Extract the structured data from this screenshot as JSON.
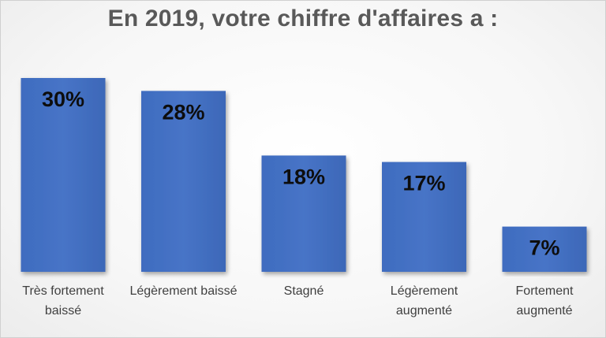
{
  "chart_data": {
    "type": "bar",
    "title": "En 2019, votre chiffre d'affaires a :",
    "categories": [
      [
        "Très fortement",
        "baissé"
      ],
      [
        "Légèrement baissé"
      ],
      [
        "Stagné"
      ],
      [
        "Légèrement",
        "augmenté"
      ],
      [
        "Fortement",
        "augmenté"
      ]
    ],
    "values": [
      30,
      28,
      18,
      17,
      7
    ],
    "value_labels": [
      "30%",
      "28%",
      "18%",
      "17%",
      "7%"
    ],
    "ylim": [
      0,
      30
    ],
    "grid": false,
    "legend": "none",
    "bar_color": "#4472c4"
  }
}
